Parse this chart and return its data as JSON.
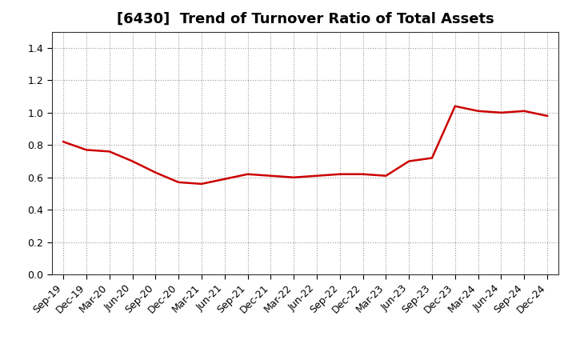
{
  "title": "[6430]  Trend of Turnover Ratio of Total Assets",
  "x_labels": [
    "Sep-19",
    "Dec-19",
    "Mar-20",
    "Jun-20",
    "Sep-20",
    "Dec-20",
    "Mar-21",
    "Jun-21",
    "Sep-21",
    "Dec-21",
    "Mar-22",
    "Jun-22",
    "Sep-22",
    "Dec-22",
    "Mar-23",
    "Jun-23",
    "Sep-23",
    "Dec-23",
    "Mar-24",
    "Jun-24",
    "Sep-24",
    "Dec-24"
  ],
  "y_values": [
    0.82,
    0.77,
    0.76,
    0.7,
    0.63,
    0.57,
    0.56,
    0.59,
    0.62,
    0.61,
    0.6,
    0.61,
    0.62,
    0.62,
    0.61,
    0.7,
    0.72,
    1.04,
    1.01,
    1.0,
    1.01,
    0.98
  ],
  "line_color": "#cc0000",
  "line_width": 1.8,
  "ylim": [
    0.0,
    1.5
  ],
  "yticks": [
    0.0,
    0.2,
    0.4,
    0.6,
    0.8,
    1.0,
    1.2,
    1.4
  ],
  "grid_color": "#999999",
  "grid_style": "dotted",
  "title_fontsize": 13,
  "tick_fontsize": 9,
  "background_color": "#ffffff"
}
